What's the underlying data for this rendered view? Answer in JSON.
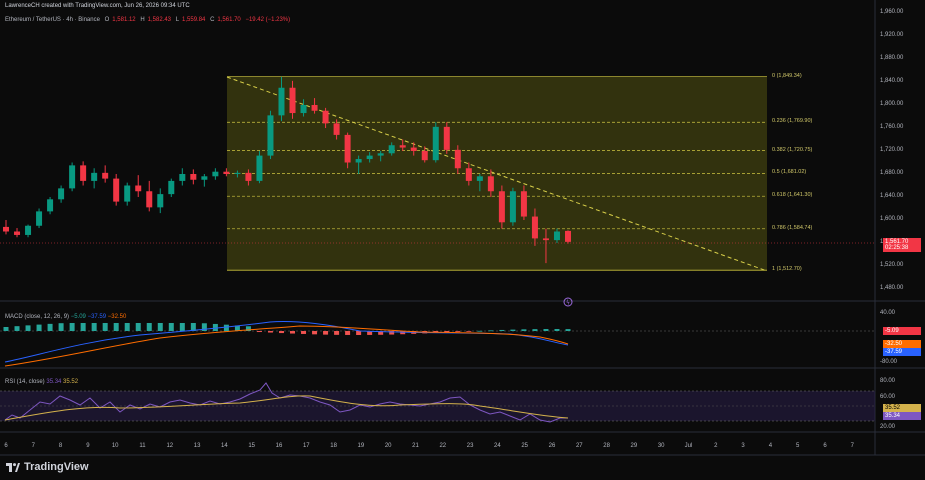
{
  "header": {
    "attribution": "LawrenceCH created with TradingView.com, Jun 26, 2026 09:34 UTC",
    "symbol": "Ethereum / TetherUS · 4h · Binance",
    "ohlc": {
      "o_label": "O",
      "o": "1,581.12",
      "h_label": "H",
      "h": "1,582.43",
      "l_label": "L",
      "l": "1,559.84",
      "c_label": "C",
      "c": "1,561.70",
      "change": "−19.42 (−1.23%)"
    }
  },
  "price_axis": {
    "ticks": [
      "1,920.00",
      "1,880.00",
      "1,840.00",
      "1,800.00",
      "1,760.00",
      "1,720.00",
      "1,680.00",
      "1,640.00",
      "1,600.00",
      "1,560.00",
      "1,520.00",
      "1,480.00"
    ],
    "top_partial": "1,960.00",
    "last_price": "1,561.70",
    "countdown": "02:25:38"
  },
  "fib_levels": [
    {
      "ratio": "0",
      "price": "1,849.34",
      "label": "0 (1,849.34)"
    },
    {
      "ratio": "0.236",
      "price": "1,769.90",
      "label": "0.236 (1,769.90)"
    },
    {
      "ratio": "0.382",
      "price": "1,720.75",
      "label": "0.382 (1,720.75)"
    },
    {
      "ratio": "0.5",
      "price": "1,681.02",
      "label": "0.5 (1,681.02)"
    },
    {
      "ratio": "0.618",
      "price": "1,641.30",
      "label": "0.618 (1,641.30)"
    },
    {
      "ratio": "0.786",
      "price": "1,584.74",
      "label": "0.786 (1,584.74)"
    },
    {
      "ratio": "1",
      "price": "1,512.70",
      "label": "1 (1,512.70)"
    }
  ],
  "macd": {
    "label": "MACD (close, 12, 26, 9)",
    "v1": "−5.09",
    "v2": "−37.59",
    "v3": "−32.50",
    "axis": [
      "40.00",
      "-80.00"
    ],
    "badges": [
      "-5.09",
      "-32.50",
      "-37.59"
    ]
  },
  "rsi": {
    "label": "RSI (14, close)",
    "v1": "35.34",
    "v2": "35.52",
    "axis": [
      "80.00",
      "60.00",
      "20.00"
    ],
    "badges": [
      "35.52",
      "35.34"
    ]
  },
  "date_axis": [
    "6",
    "7",
    "8",
    "9",
    "10",
    "11",
    "12",
    "13",
    "14",
    "15",
    "16",
    "17",
    "18",
    "19",
    "20",
    "21",
    "22",
    "23",
    "24",
    "25",
    "26",
    "27",
    "28",
    "29",
    "30",
    "Jul",
    "2",
    "3",
    "4",
    "5",
    "6",
    "7"
  ],
  "branding": {
    "name": "TradingView"
  },
  "colors": {
    "up": "#089981",
    "down": "#f23645",
    "fib": "#b8b03a",
    "fib_fill": "#3a3a0f",
    "macd_line": "#2962ff",
    "signal_line": "#ff6d00",
    "rsi_line": "#7e57c2",
    "rsi_ma": "#d4b24c"
  },
  "candles": [
    [
      1588,
      1600,
      1575,
      1580
    ],
    [
      1580,
      1586,
      1570,
      1574
    ],
    [
      1574,
      1592,
      1570,
      1590
    ],
    [
      1590,
      1620,
      1586,
      1615
    ],
    [
      1615,
      1640,
      1610,
      1636
    ],
    [
      1636,
      1660,
      1630,
      1655
    ],
    [
      1655,
      1700,
      1650,
      1695
    ],
    [
      1695,
      1702,
      1660,
      1668
    ],
    [
      1668,
      1690,
      1655,
      1682
    ],
    [
      1682,
      1695,
      1665,
      1672
    ],
    [
      1672,
      1680,
      1625,
      1632
    ],
    [
      1632,
      1665,
      1625,
      1660
    ],
    [
      1660,
      1678,
      1640,
      1650
    ],
    [
      1650,
      1668,
      1615,
      1622
    ],
    [
      1622,
      1655,
      1612,
      1645
    ],
    [
      1645,
      1672,
      1640,
      1668
    ],
    [
      1668,
      1690,
      1660,
      1680
    ],
    [
      1680,
      1688,
      1662,
      1670
    ],
    [
      1670,
      1680,
      1658,
      1676
    ],
    [
      1676,
      1690,
      1670,
      1684
    ],
    [
      1684,
      1690,
      1676,
      1680
    ],
    [
      1680,
      1686,
      1674,
      1682
    ],
    [
      1682,
      1688,
      1660,
      1668
    ],
    [
      1668,
      1720,
      1664,
      1712
    ],
    [
      1712,
      1790,
      1706,
      1782
    ],
    [
      1782,
      1849,
      1772,
      1830
    ],
    [
      1830,
      1842,
      1776,
      1786
    ],
    [
      1786,
      1810,
      1780,
      1800
    ],
    [
      1800,
      1812,
      1785,
      1790
    ],
    [
      1790,
      1795,
      1760,
      1768
    ],
    [
      1768,
      1775,
      1740,
      1748
    ],
    [
      1748,
      1752,
      1690,
      1700
    ],
    [
      1700,
      1712,
      1680,
      1706
    ],
    [
      1706,
      1718,
      1700,
      1712
    ],
    [
      1712,
      1720,
      1702,
      1716
    ],
    [
      1716,
      1735,
      1712,
      1730
    ],
    [
      1730,
      1740,
      1720,
      1726
    ],
    [
      1726,
      1735,
      1712,
      1720
    ],
    [
      1720,
      1728,
      1700,
      1704
    ],
    [
      1704,
      1770,
      1700,
      1762
    ],
    [
      1762,
      1770,
      1715,
      1722
    ],
    [
      1722,
      1730,
      1680,
      1690
    ],
    [
      1690,
      1700,
      1660,
      1668
    ],
    [
      1668,
      1680,
      1650,
      1676
    ],
    [
      1676,
      1688,
      1640,
      1650
    ],
    [
      1650,
      1660,
      1585,
      1596
    ],
    [
      1596,
      1656,
      1590,
      1650
    ],
    [
      1650,
      1660,
      1600,
      1606
    ],
    [
      1606,
      1620,
      1555,
      1568
    ],
    [
      1568,
      1585,
      1525,
      1565
    ],
    [
      1565,
      1585,
      1560,
      1580
    ],
    [
      1581,
      1582,
      1559,
      1562
    ]
  ],
  "volume_bar_dummy": ""
}
